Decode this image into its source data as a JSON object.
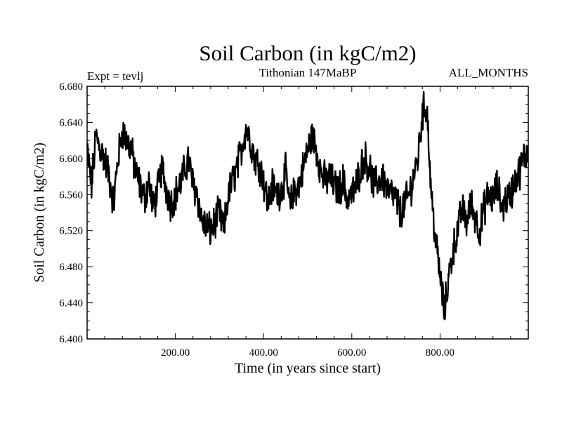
{
  "chart_data": {
    "type": "line",
    "title": "Soil Carbon (in kgC/m2)",
    "left_note": "Expt = tevlj",
    "center_note": "Tithonian 147MaBP",
    "right_note": "ALL_MONTHS",
    "xlabel": "Time (in years since start)",
    "ylabel": "Soil Carbon (in kgC/m2)",
    "xlim": [
      0,
      1000
    ],
    "ylim": [
      6.4,
      6.68
    ],
    "x_ticks": [
      200,
      400,
      600,
      800
    ],
    "x_tick_labels": [
      "200.00",
      "400.00",
      "600.00",
      "800.00"
    ],
    "y_ticks": [
      6.4,
      6.44,
      6.48,
      6.52,
      6.56,
      6.6,
      6.64,
      6.68
    ],
    "y_tick_labels": [
      "6.400",
      "6.440",
      "6.480",
      "6.520",
      "6.560",
      "6.600",
      "6.640",
      "6.680"
    ],
    "series": [
      {
        "name": "Soil Carbon",
        "color": "#000000",
        "x": [
          0,
          10,
          20,
          30,
          40,
          50,
          60,
          70,
          80,
          90,
          100,
          110,
          120,
          130,
          140,
          150,
          160,
          170,
          180,
          190,
          200,
          210,
          220,
          230,
          240,
          250,
          260,
          270,
          280,
          290,
          300,
          310,
          320,
          330,
          340,
          350,
          360,
          370,
          380,
          390,
          400,
          410,
          420,
          430,
          440,
          450,
          460,
          470,
          480,
          490,
          500,
          510,
          520,
          530,
          540,
          550,
          560,
          570,
          580,
          590,
          600,
          610,
          620,
          630,
          640,
          650,
          660,
          670,
          680,
          690,
          700,
          710,
          720,
          730,
          740,
          750,
          760,
          770,
          780,
          790,
          800,
          810,
          820,
          830,
          840,
          850,
          860,
          870,
          880,
          890,
          900,
          910,
          920,
          930,
          940,
          950,
          960,
          970,
          980,
          990,
          1000
        ],
        "values": [
          6.61,
          6.57,
          6.625,
          6.61,
          6.6,
          6.58,
          6.55,
          6.6,
          6.63,
          6.62,
          6.61,
          6.585,
          6.57,
          6.555,
          6.575,
          6.545,
          6.565,
          6.59,
          6.565,
          6.55,
          6.56,
          6.57,
          6.585,
          6.6,
          6.57,
          6.56,
          6.53,
          6.525,
          6.52,
          6.53,
          6.54,
          6.52,
          6.56,
          6.575,
          6.59,
          6.61,
          6.635,
          6.62,
          6.6,
          6.595,
          6.575,
          6.55,
          6.57,
          6.56,
          6.565,
          6.585,
          6.545,
          6.565,
          6.57,
          6.59,
          6.61,
          6.625,
          6.61,
          6.585,
          6.575,
          6.58,
          6.57,
          6.565,
          6.575,
          6.555,
          6.56,
          6.57,
          6.59,
          6.6,
          6.59,
          6.57,
          6.575,
          6.58,
          6.565,
          6.56,
          6.555,
          6.54,
          6.55,
          6.56,
          6.58,
          6.6,
          6.65,
          6.66,
          6.56,
          6.51,
          6.47,
          6.43,
          6.47,
          6.5,
          6.52,
          6.545,
          6.53,
          6.55,
          6.535,
          6.52,
          6.545,
          6.56,
          6.555,
          6.57,
          6.545,
          6.555,
          6.56,
          6.575,
          6.585,
          6.6,
          6.61
        ]
      }
    ]
  }
}
